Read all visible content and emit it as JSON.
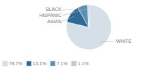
{
  "chart_data": {
    "type": "pie",
    "categories": [
      "WHITE",
      "ASIAN",
      "HISPANIC",
      "BLACK"
    ],
    "values": [
      78.7,
      13.1,
      7.1,
      1.1
    ],
    "value_labels": [
      "78.7%",
      "13.1%",
      "7.1%",
      "1.1%"
    ],
    "colors": [
      "#d4dfe8",
      "#2d6a96",
      "#5a8fb5",
      "#b8cdd9"
    ],
    "legend": "lower left"
  }
}
